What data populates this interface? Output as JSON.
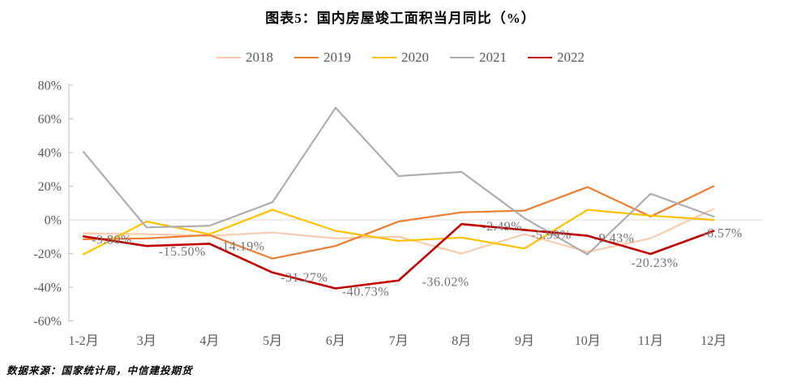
{
  "title": "图表5：国内房屋竣工面积当月同比（%）",
  "source": "数据来源：国家统计局，中信建投期货",
  "chart_data": {
    "type": "line",
    "title": "图表5：国内房屋竣工面积当月同比（%）",
    "categories": [
      "1-2月",
      "3月",
      "4月",
      "5月",
      "6月",
      "7月",
      "8月",
      "9月",
      "10月",
      "11月",
      "12月"
    ],
    "series": [
      {
        "name": "2018",
        "color": "#F8CBAD",
        "values": [
          -8,
          -8.5,
          -9.5,
          -7.5,
          -11,
          -10,
          -20,
          -8.5,
          -19,
          -11,
          6.5
        ]
      },
      {
        "name": "2019",
        "color": "#ED7D31",
        "values": [
          -11.5,
          -11,
          -9,
          -23,
          -15.5,
          -1,
          4.5,
          5.5,
          19.5,
          2,
          20
        ]
      },
      {
        "name": "2020",
        "color": "#FFC000",
        "values": [
          -20.5,
          -1,
          -8.5,
          6,
          -6.5,
          -12.5,
          -10.5,
          -17,
          6,
          2.5,
          0
        ]
      },
      {
        "name": "2021",
        "color": "#ADADAD",
        "values": [
          40.4,
          -4.5,
          -3.5,
          10.5,
          66.6,
          26,
          28.5,
          1,
          -20.5,
          15.5,
          2
        ]
      },
      {
        "name": "2022",
        "color": "#C00000",
        "values": [
          -9.8,
          -15.5,
          -14.19,
          -31.27,
          -40.73,
          -36.02,
          -2.49,
          -5.99,
          -9.43,
          -20.23,
          -6.57
        ],
        "labels": [
          "-9.80%",
          "-15.50%",
          "-14.19%",
          "-31.27%",
          "-40.73%",
          "-36.02%",
          "-2.49%",
          "-5.99%",
          "-9.43%",
          "-20.23%",
          "-6.57%"
        ]
      }
    ],
    "ylim": [
      -60,
      80
    ],
    "ytick_step": 20,
    "ytick_labels": [
      "80%",
      "60%",
      "40%",
      "20%",
      "0%",
      "-20%",
      "-40%",
      "-60%"
    ],
    "ytick_values": [
      80,
      60,
      40,
      20,
      0,
      -20,
      -40,
      -60
    ],
    "legend_position": "top",
    "grid": "zero-line-only",
    "xlabel": "",
    "ylabel": ""
  }
}
